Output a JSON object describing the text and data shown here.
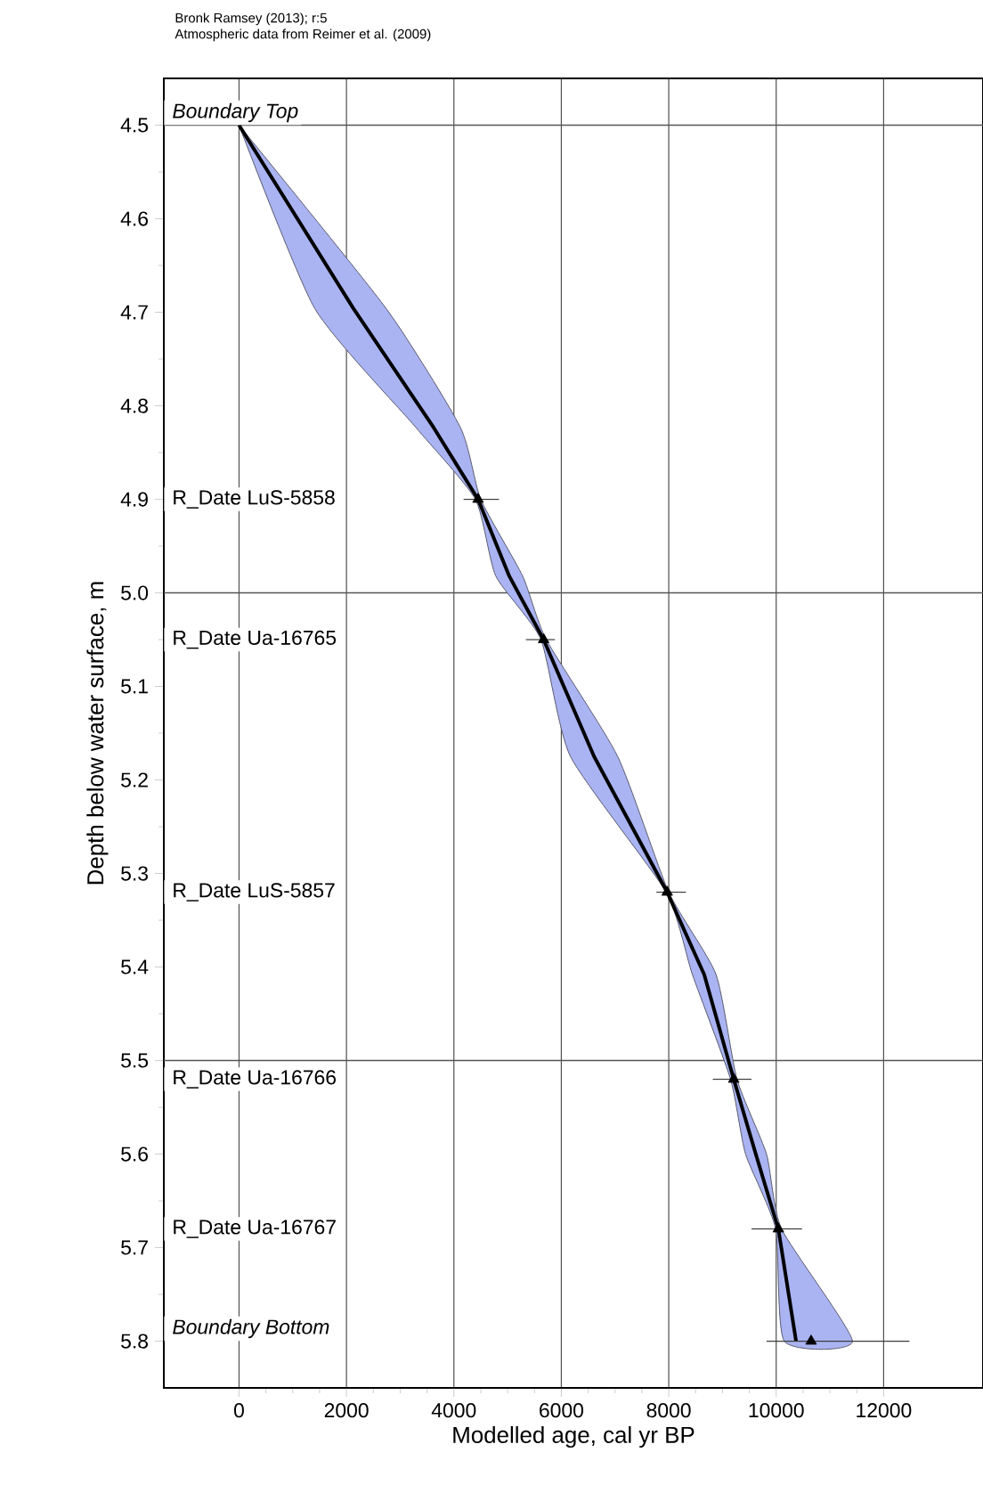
{
  "chart_data": {
    "type": "line",
    "xlabel": "Modelled age, cal yr BP",
    "ylabel": "Depth below water surface, m",
    "xlim": [
      -1400,
      13850
    ],
    "ylim": [
      5.85,
      4.45
    ],
    "xticks": [
      0,
      2000,
      4000,
      6000,
      8000,
      10000,
      12000
    ],
    "yticks": [
      4.5,
      4.6,
      4.7,
      4.8,
      4.9,
      {
        "value": 5.0,
        "label": "5.0"
      },
      5.1,
      5.2,
      5.3,
      5.4,
      5.5,
      5.6,
      5.7,
      5.8
    ],
    "grid": "x",
    "ref_lines": [
      {
        "axis": "y",
        "value": 4.5,
        "color": "#555555"
      },
      {
        "axis": "y",
        "value": 5.0,
        "color": "#555555"
      },
      {
        "axis": "y",
        "value": 5.5,
        "color": "#555555"
      }
    ],
    "series": [
      {
        "type": "area",
        "color": "#aab4f2",
        "x": [
          0,
          1410,
          3290,
          4400,
          4780,
          5620,
          6170,
          7950,
          8440,
          9150,
          9430,
          9990,
          10150,
          11420,
          10100,
          9820,
          9270,
          8880,
          8000,
          7050,
          5720,
          5280,
          4500,
          4120,
          2740,
          0
        ],
        "values": [
          4.5,
          4.696,
          4.823,
          4.9,
          4.982,
          5.05,
          5.175,
          5.32,
          5.408,
          5.52,
          5.6,
          5.68,
          5.8,
          5.8,
          5.68,
          5.6,
          5.52,
          5.408,
          5.32,
          5.175,
          5.05,
          4.982,
          4.9,
          4.823,
          4.696,
          4.5
        ]
      },
      {
        "color": "#000000",
        "x": [
          0,
          2130,
          3620,
          4450,
          5030,
          5670,
          6610,
          7970,
          8660,
          9210,
          9620,
          10040,
          10370
        ],
        "values": [
          4.5,
          4.696,
          4.823,
          4.9,
          4.982,
          5.05,
          5.175,
          5.32,
          5.408,
          5.52,
          5.6,
          5.68,
          5.8
        ]
      },
      {
        "type": "scatter",
        "color": "#000000",
        "marker": "triangle",
        "x": [
          4450,
          5670,
          7970,
          9210,
          10040,
          10650
        ],
        "values": [
          4.9,
          5.05,
          5.32,
          5.52,
          5.68,
          5.8
        ],
        "xerrors": [
          [
            4180,
            4840
          ],
          [
            5340,
            5880
          ],
          [
            7770,
            8320
          ],
          [
            8820,
            9540
          ],
          [
            9540,
            10480
          ],
          [
            9820,
            12480
          ]
        ]
      }
    ],
    "annotations": [
      "Bronk Ramsey (2013); r:5",
      "Atmospheric data from Reimer et al. (2009)",
      "*Boundary Top*",
      "R_Date LuS-5858",
      "R_Date Ua-16765",
      "R_Date LuS-5857",
      "R_Date Ua-16766",
      "R_Date Ua-16767",
      "*Boundary Bottom*"
    ]
  }
}
